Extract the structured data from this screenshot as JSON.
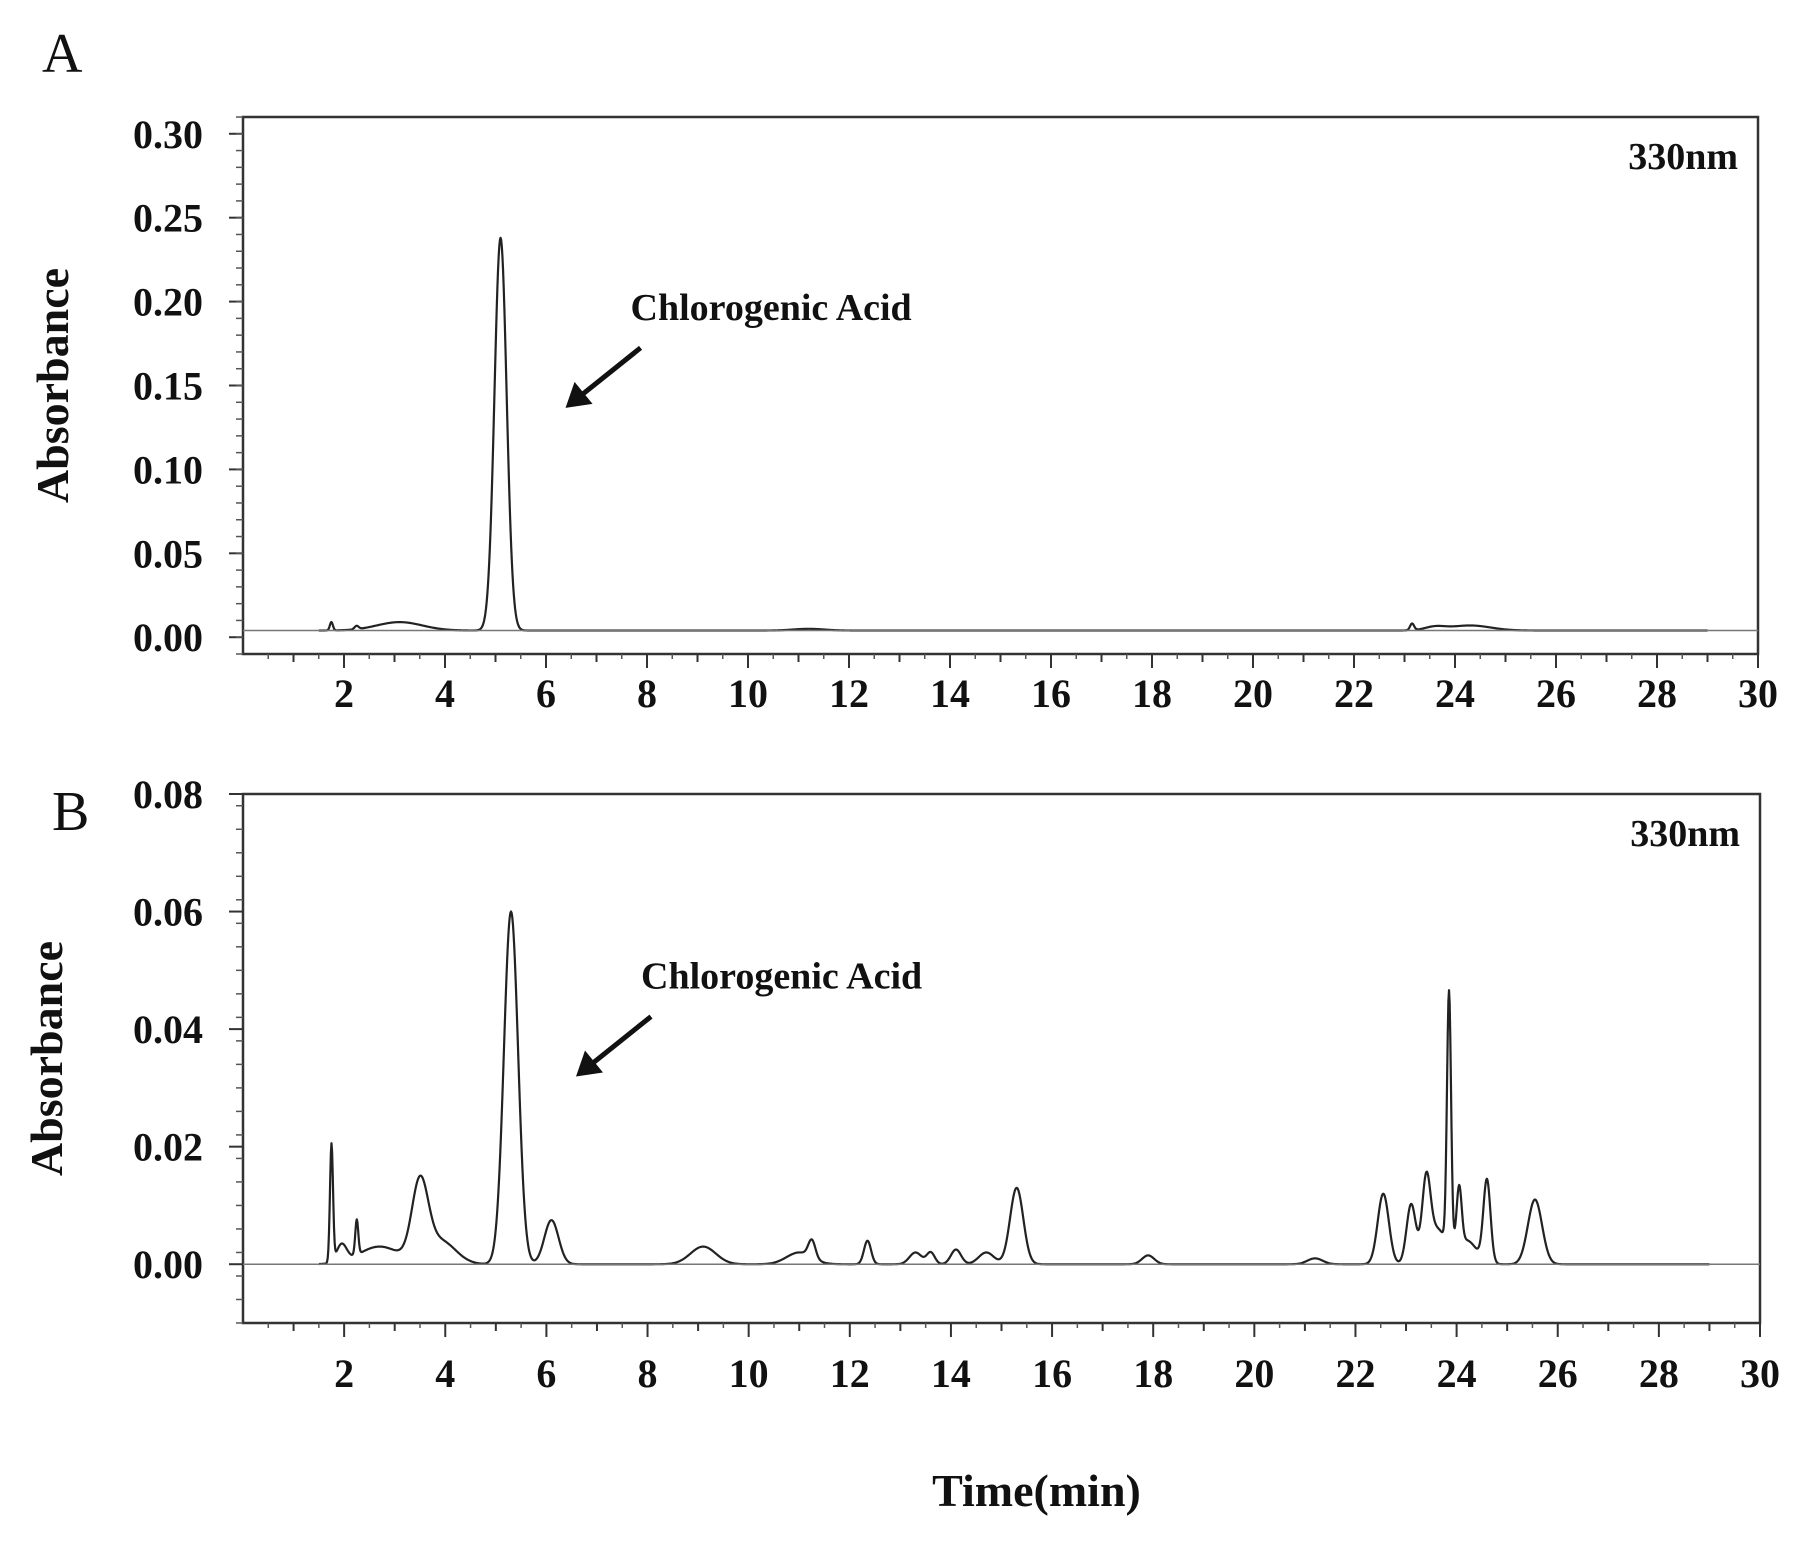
{
  "chart_data": [
    {
      "type": "line",
      "panel_label": "A",
      "annotation_text": "330nm",
      "callout": {
        "text": "Chlorogenic Acid",
        "x": 5.1,
        "y": 0.235
      },
      "xlabel": "",
      "ylabel": "Absorbance",
      "xlim": [
        0,
        30
      ],
      "ylim": [
        -0.01,
        0.31
      ],
      "x_ticks": [
        "2",
        "4",
        "6",
        "8",
        "10",
        "12",
        "14",
        "16",
        "18",
        "20",
        "22",
        "24",
        "26",
        "28",
        "30"
      ],
      "y_ticks": [
        "0.00",
        "0.05",
        "0.10",
        "0.15",
        "0.20",
        "0.25",
        "0.30"
      ],
      "baseline": 0.004,
      "peaks": [
        {
          "x": 1.75,
          "h": 0.005,
          "w": 0.03
        },
        {
          "x": 2.25,
          "h": 0.002,
          "w": 0.04
        },
        {
          "x": 3.1,
          "h": 0.005,
          "w": 0.45
        },
        {
          "x": 5.1,
          "h": 0.234,
          "w": 0.12
        },
        {
          "x": 11.2,
          "h": 0.001,
          "w": 0.3
        },
        {
          "x": 23.15,
          "h": 0.004,
          "w": 0.04
        },
        {
          "x": 23.6,
          "h": 0.002,
          "w": 0.2
        },
        {
          "x": 24.3,
          "h": 0.003,
          "w": 0.4
        }
      ]
    },
    {
      "type": "line",
      "panel_label": "B",
      "annotation_text": "330nm",
      "callout": {
        "text": "Chlorogenic Acid",
        "x": 5.3,
        "y": 0.06
      },
      "xlabel": "Time(min)",
      "ylabel": "Absorbance",
      "xlim": [
        0,
        30
      ],
      "ylim": [
        -0.01,
        0.08
      ],
      "x_ticks": [
        "2",
        "4",
        "6",
        "8",
        "10",
        "12",
        "14",
        "16",
        "18",
        "20",
        "22",
        "24",
        "26",
        "28",
        "30"
      ],
      "y_ticks": [
        "0.00",
        "0.02",
        "0.04",
        "0.06",
        "0.08"
      ],
      "baseline": 0.0,
      "peaks": [
        {
          "x": 1.75,
          "h": 0.02,
          "w": 0.03
        },
        {
          "x": 1.95,
          "h": 0.003,
          "w": 0.1
        },
        {
          "x": 2.25,
          "h": 0.006,
          "w": 0.03
        },
        {
          "x": 2.7,
          "h": 0.003,
          "w": 0.4
        },
        {
          "x": 3.5,
          "h": 0.013,
          "w": 0.16
        },
        {
          "x": 3.9,
          "h": 0.004,
          "w": 0.3
        },
        {
          "x": 5.3,
          "h": 0.06,
          "w": 0.14
        },
        {
          "x": 6.1,
          "h": 0.0075,
          "w": 0.14
        },
        {
          "x": 9.1,
          "h": 0.003,
          "w": 0.25
        },
        {
          "x": 11.0,
          "h": 0.002,
          "w": 0.25
        },
        {
          "x": 11.25,
          "h": 0.003,
          "w": 0.07
        },
        {
          "x": 12.35,
          "h": 0.004,
          "w": 0.07
        },
        {
          "x": 13.3,
          "h": 0.002,
          "w": 0.12
        },
        {
          "x": 13.6,
          "h": 0.002,
          "w": 0.08
        },
        {
          "x": 14.1,
          "h": 0.0025,
          "w": 0.1
        },
        {
          "x": 14.7,
          "h": 0.002,
          "w": 0.15
        },
        {
          "x": 15.3,
          "h": 0.013,
          "w": 0.13
        },
        {
          "x": 17.9,
          "h": 0.0015,
          "w": 0.12
        },
        {
          "x": 21.2,
          "h": 0.001,
          "w": 0.15
        },
        {
          "x": 22.55,
          "h": 0.012,
          "w": 0.11
        },
        {
          "x": 23.1,
          "h": 0.01,
          "w": 0.09
        },
        {
          "x": 23.4,
          "h": 0.012,
          "w": 0.08
        },
        {
          "x": 23.6,
          "h": 0.006,
          "w": 0.2
        },
        {
          "x": 23.85,
          "h": 0.043,
          "w": 0.04
        },
        {
          "x": 24.05,
          "h": 0.01,
          "w": 0.05
        },
        {
          "x": 24.2,
          "h": 0.004,
          "w": 0.2
        },
        {
          "x": 24.6,
          "h": 0.014,
          "w": 0.07
        },
        {
          "x": 25.55,
          "h": 0.011,
          "w": 0.14
        }
      ]
    }
  ]
}
